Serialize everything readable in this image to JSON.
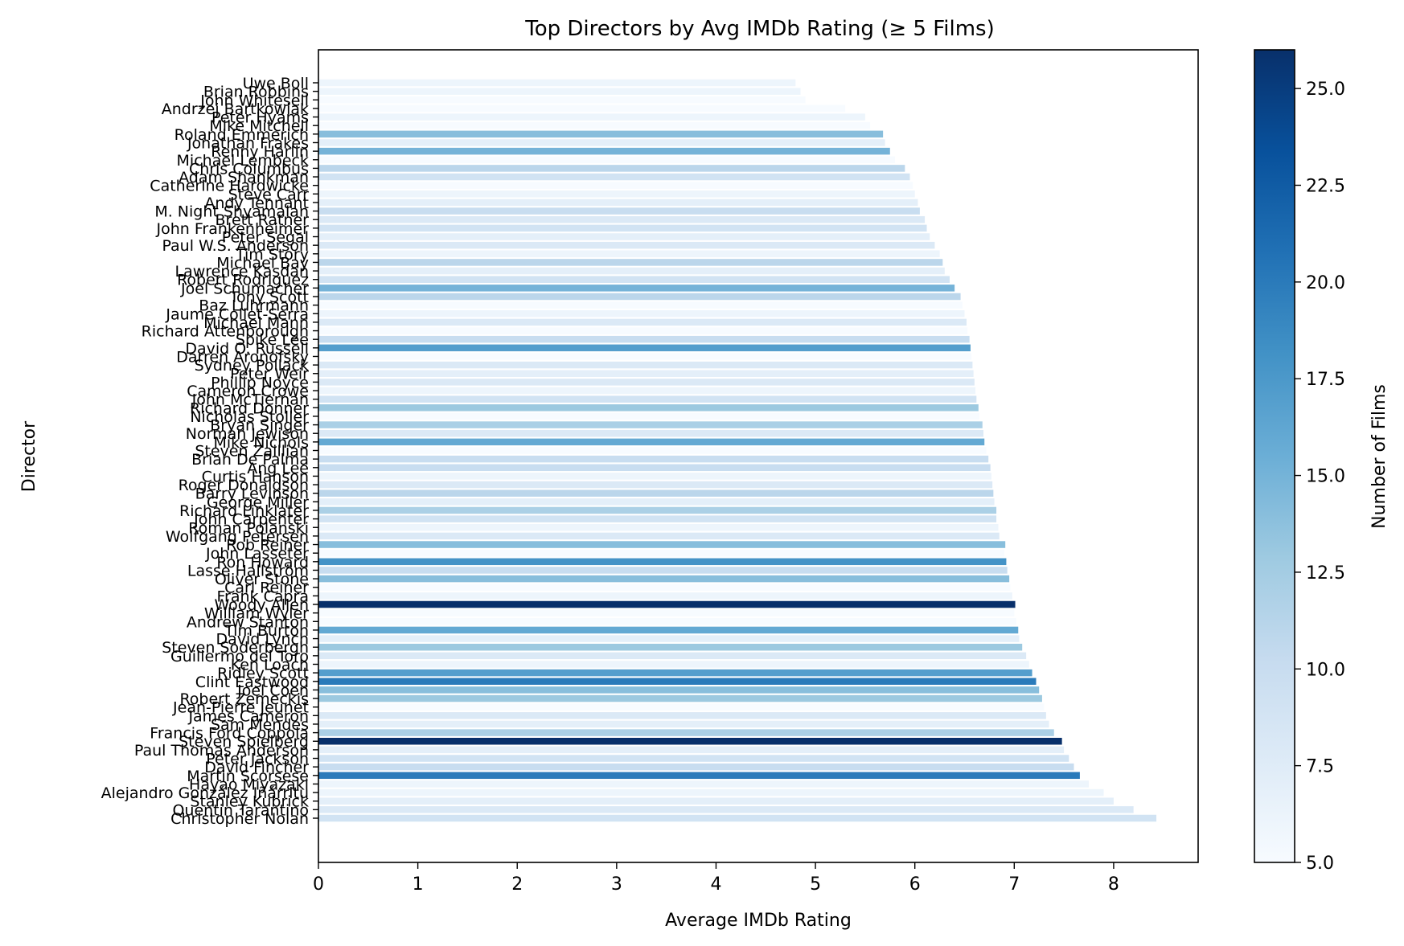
{
  "chart_data": {
    "type": "bar",
    "orientation": "horizontal",
    "title": "Top Directors by Avg IMDb Rating (≥ 5 Films)",
    "xlabel": "Average IMDb Rating",
    "ylabel": "Director",
    "xlim": [
      0,
      8.85
    ],
    "xticks": [
      0,
      1,
      2,
      3,
      4,
      5,
      6,
      7,
      8
    ],
    "grid": false,
    "colorbar": {
      "label": "Number of Films",
      "colormap": "Blues",
      "range": [
        5,
        26
      ],
      "ticks": [
        5.0,
        7.5,
        10.0,
        12.5,
        15.0,
        17.5,
        20.0,
        22.5,
        25.0
      ],
      "tick_labels": [
        "5.0",
        "7.5",
        "10.0",
        "12.5",
        "15.0",
        "17.5",
        "20.0",
        "22.5",
        "25.0"
      ]
    },
    "visible_label_order": "bottom-to-top, highest rating at bottom",
    "bars": [
      {
        "director": "Christopher Nolan",
        "rating": 8.43,
        "films": 9
      },
      {
        "director": "Quentin Tarantino",
        "rating": 8.2,
        "films": 8
      },
      {
        "director": "Stanley Kubrick",
        "rating": 8.0,
        "films": 7
      },
      {
        "director": "Alejandro González Iñárritu",
        "rating": 7.9,
        "films": 6
      },
      {
        "director": "Hayao Miyazaki",
        "rating": 7.75,
        "films": 6
      },
      {
        "director": "Martin Scorsese",
        "rating": 7.66,
        "films": 20
      },
      {
        "director": "David Fincher",
        "rating": 7.6,
        "films": 10
      },
      {
        "director": "Peter Jackson",
        "rating": 7.55,
        "films": 9
      },
      {
        "director": "Paul Thomas Anderson",
        "rating": 7.5,
        "films": 7
      },
      {
        "director": "Steven Spielberg",
        "rating": 7.48,
        "films": 26
      },
      {
        "director": "Francis Ford Coppola",
        "rating": 7.4,
        "films": 12
      },
      {
        "director": "Sam Mendes",
        "rating": 7.35,
        "films": 7
      },
      {
        "director": "James Cameron",
        "rating": 7.32,
        "films": 8
      },
      {
        "director": "Jean-Pierre Jeunet",
        "rating": 7.3,
        "films": 5
      },
      {
        "director": "Robert Zemeckis",
        "rating": 7.28,
        "films": 13
      },
      {
        "director": "Joel Coen",
        "rating": 7.25,
        "films": 14
      },
      {
        "director": "Clint Eastwood",
        "rating": 7.22,
        "films": 20
      },
      {
        "director": "Ridley Scott",
        "rating": 7.18,
        "films": 17
      },
      {
        "director": "Ken Loach",
        "rating": 7.15,
        "films": 6
      },
      {
        "director": "Guillermo del Toro",
        "rating": 7.12,
        "films": 8
      },
      {
        "director": "Steven Soderbergh",
        "rating": 7.08,
        "films": 13
      },
      {
        "director": "David Lynch",
        "rating": 7.05,
        "films": 7
      },
      {
        "director": "Tim Burton",
        "rating": 7.04,
        "films": 16
      },
      {
        "director": "Andrew Stanton",
        "rating": 7.02,
        "films": 5
      },
      {
        "director": "William Wyler",
        "rating": 7.0,
        "films": 5
      },
      {
        "director": "Woody Allen",
        "rating": 7.01,
        "films": 26
      },
      {
        "director": "Frank Capra",
        "rating": 6.98,
        "films": 6
      },
      {
        "director": "Carl Reiner",
        "rating": 6.96,
        "films": 5
      },
      {
        "director": "Oliver Stone",
        "rating": 6.95,
        "films": 14
      },
      {
        "director": "Lasse Hallström",
        "rating": 6.93,
        "films": 10
      },
      {
        "director": "Ron Howard",
        "rating": 6.92,
        "films": 18
      },
      {
        "director": "John Lasseter",
        "rating": 6.9,
        "films": 5
      },
      {
        "director": "Rob Reiner",
        "rating": 6.91,
        "films": 14
      },
      {
        "director": "Wolfgang Petersen",
        "rating": 6.85,
        "films": 8
      },
      {
        "director": "Roman Polanski",
        "rating": 6.84,
        "films": 6
      },
      {
        "director": "John Carpenter",
        "rating": 6.82,
        "films": 9
      },
      {
        "director": "Richard Linklater",
        "rating": 6.82,
        "films": 12
      },
      {
        "director": "George Miller",
        "rating": 6.8,
        "films": 7
      },
      {
        "director": "Barry Levinson",
        "rating": 6.79,
        "films": 11
      },
      {
        "director": "Roger Donaldson",
        "rating": 6.78,
        "films": 8
      },
      {
        "director": "Curtis Hanson",
        "rating": 6.77,
        "films": 6
      },
      {
        "director": "Ang Lee",
        "rating": 6.76,
        "films": 10
      },
      {
        "director": "Brian De Palma",
        "rating": 6.74,
        "films": 10
      },
      {
        "director": "Steven Zaillian",
        "rating": 6.72,
        "films": 5
      },
      {
        "director": "Mike Nichols",
        "rating": 6.7,
        "films": 16
      },
      {
        "director": "Norman Jewison",
        "rating": 6.69,
        "films": 8
      },
      {
        "director": "Bryan Singer",
        "rating": 6.68,
        "films": 12
      },
      {
        "director": "Nicholas Stoller",
        "rating": 6.65,
        "films": 5
      },
      {
        "director": "Richard Donner",
        "rating": 6.64,
        "films": 13
      },
      {
        "director": "John McTiernan",
        "rating": 6.62,
        "films": 9
      },
      {
        "director": "Cameron Crowe",
        "rating": 6.61,
        "films": 6
      },
      {
        "director": "Phillip Noyce",
        "rating": 6.6,
        "films": 8
      },
      {
        "director": "Peter Weir",
        "rating": 6.59,
        "films": 7
      },
      {
        "director": "Sydney Pollack",
        "rating": 6.58,
        "films": 8
      },
      {
        "director": "Darren Aronofsky",
        "rating": 6.57,
        "films": 5
      },
      {
        "director": "David O. Russell",
        "rating": 6.56,
        "films": 17
      },
      {
        "director": "Spike Lee",
        "rating": 6.55,
        "films": 10
      },
      {
        "director": "Richard Attenborough",
        "rating": 6.53,
        "films": 5
      },
      {
        "director": "Michael Mann",
        "rating": 6.52,
        "films": 8
      },
      {
        "director": "Jaume Collet-Serra",
        "rating": 6.5,
        "films": 6
      },
      {
        "director": "Baz Luhrmann",
        "rating": 6.48,
        "films": 5
      },
      {
        "director": "Tony Scott",
        "rating": 6.46,
        "films": 11
      },
      {
        "director": "Joel Schumacher",
        "rating": 6.4,
        "films": 15
      },
      {
        "director": "Robert Rodriguez",
        "rating": 6.35,
        "films": 9
      },
      {
        "director": "Lawrence Kasdan",
        "rating": 6.3,
        "films": 7
      },
      {
        "director": "Michael Bay",
        "rating": 6.28,
        "films": 11
      },
      {
        "director": "Tim Story",
        "rating": 6.25,
        "films": 6
      },
      {
        "director": "Paul W.S. Anderson",
        "rating": 6.2,
        "films": 8
      },
      {
        "director": "Peter Segal",
        "rating": 6.15,
        "films": 7
      },
      {
        "director": "John Frankenheimer",
        "rating": 6.12,
        "films": 9
      },
      {
        "director": "Brett Ratner",
        "rating": 6.1,
        "films": 8
      },
      {
        "director": "M. Night Shyamalan",
        "rating": 6.05,
        "films": 10
      },
      {
        "director": "Andy Tennant",
        "rating": 6.03,
        "films": 7
      },
      {
        "director": "Steve Carr",
        "rating": 6.0,
        "films": 6
      },
      {
        "director": "Catherine Hardwicke",
        "rating": 5.98,
        "films": 5
      },
      {
        "director": "Adam Shankman",
        "rating": 5.95,
        "films": 9
      },
      {
        "director": "Chris Columbus",
        "rating": 5.9,
        "films": 11
      },
      {
        "director": "Michael Lembeck",
        "rating": 5.8,
        "films": 5
      },
      {
        "director": "Renny Harlin",
        "rating": 5.75,
        "films": 15
      },
      {
        "director": "Jonathan Frakes",
        "rating": 5.7,
        "films": 7
      },
      {
        "director": "Roland Emmerich",
        "rating": 5.68,
        "films": 14
      },
      {
        "director": "Mike Mitchell",
        "rating": 5.55,
        "films": 5
      },
      {
        "director": "Peter Hyams",
        "rating": 5.5,
        "films": 6
      },
      {
        "director": "Andrzej Bartkowiak",
        "rating": 5.3,
        "films": 5
      },
      {
        "director": "John Whitesell",
        "rating": 4.9,
        "films": 5
      },
      {
        "director": "Brian Robbins",
        "rating": 4.85,
        "films": 6
      },
      {
        "director": "Uwe Boll",
        "rating": 4.8,
        "films": 6
      }
    ]
  }
}
